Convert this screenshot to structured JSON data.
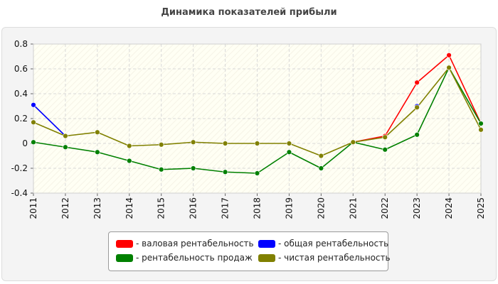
{
  "chart_data": {
    "type": "line",
    "title": "Динамика показателей прибыли",
    "xlabel": "",
    "ylabel": "",
    "x": [
      "2011",
      "2012",
      "2013",
      "2014",
      "2015",
      "2016",
      "2017",
      "2018",
      "2019",
      "2020",
      "2021",
      "2022",
      "2023",
      "2024",
      "2025"
    ],
    "ylim": [
      -0.4,
      0.8
    ],
    "yticks": [
      -0.4,
      -0.2,
      0,
      0.2,
      0.4,
      0.6,
      0.8
    ],
    "ytick_labels": [
      "-0.4",
      "-0.2",
      "0",
      "0.2",
      "0.4",
      "0.6",
      "0.8"
    ],
    "grid": true,
    "legend_position": "bottom",
    "series": [
      {
        "name": "- валовая рентабельность",
        "color": "#ff0000",
        "values": [
          null,
          null,
          null,
          null,
          null,
          null,
          null,
          null,
          null,
          null,
          0.01,
          0.06,
          0.49,
          0.71,
          0.16
        ]
      },
      {
        "name": "- общая рентабельность",
        "color": "#0000ff",
        "values": [
          0.31,
          0.06,
          null,
          null,
          null,
          null,
          null,
          null,
          null,
          null,
          null,
          null,
          0.3,
          null,
          null
        ]
      },
      {
        "name": "- рентабельность продаж",
        "color": "#008000",
        "values": [
          0.01,
          -0.03,
          -0.07,
          -0.14,
          -0.21,
          -0.2,
          -0.23,
          -0.24,
          -0.07,
          -0.2,
          0.01,
          -0.05,
          0.07,
          0.61,
          0.16
        ]
      },
      {
        "name": "- чистая рентабельность",
        "color": "#808000",
        "values": [
          0.17,
          0.06,
          0.09,
          -0.02,
          -0.01,
          0.01,
          0.0,
          0.0,
          0.0,
          -0.1,
          0.01,
          0.05,
          0.29,
          0.61,
          0.11
        ]
      }
    ]
  }
}
